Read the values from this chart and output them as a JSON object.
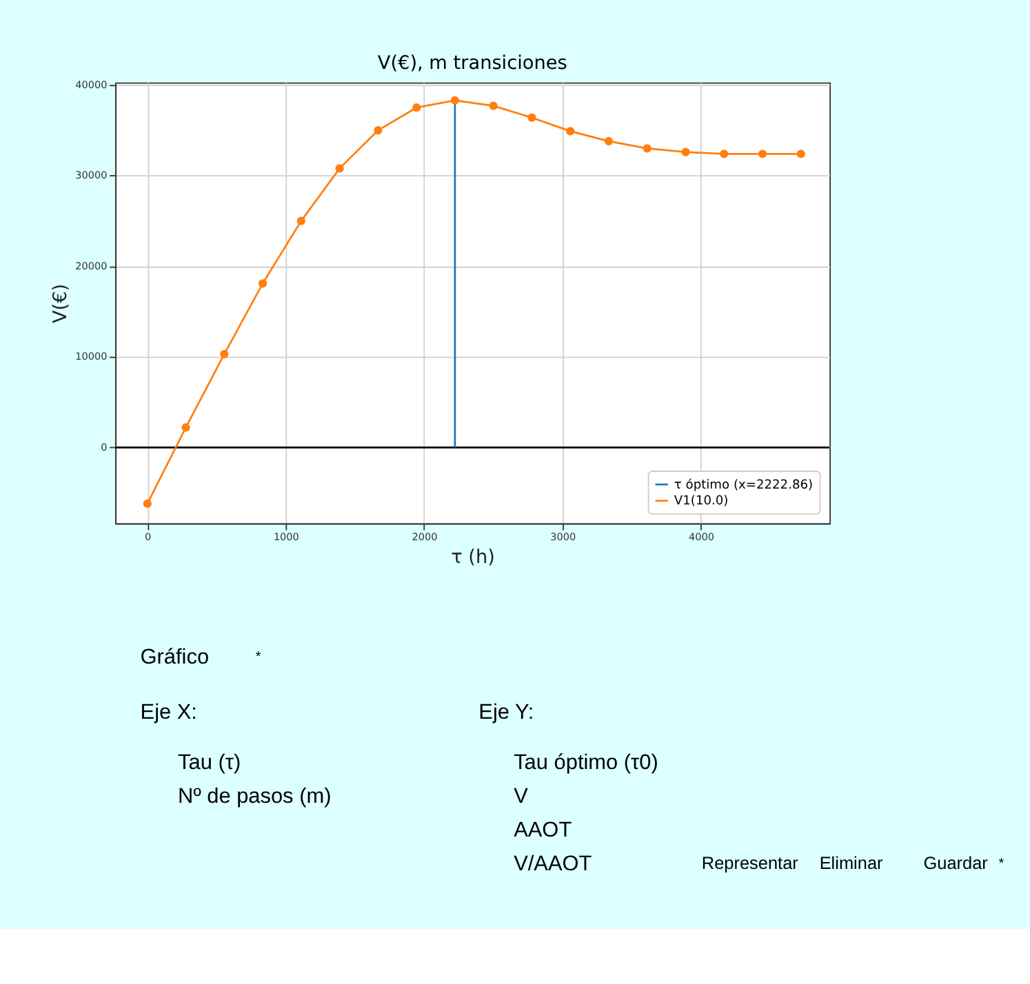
{
  "chart_data": {
    "type": "line",
    "title": "V(€), m transiciones",
    "xlabel": "τ (h)",
    "ylabel": "V(€)",
    "xlim": [
      -232,
      4930
    ],
    "ylim": [
      -8370,
      40280
    ],
    "xticks": [
      0,
      1000,
      2000,
      3000,
      4000
    ],
    "yticks": [
      0,
      10000,
      20000,
      30000,
      40000
    ],
    "grid": true,
    "legend": "bottom right",
    "ref_lines": [
      {
        "axis": "y",
        "value": 0,
        "color": "#000000"
      }
    ],
    "series": [
      {
        "name": "τ óptimo (x=2222.86)",
        "marker": "none",
        "color": "#1f77b4",
        "x": [
          2222.86,
          2222.86
        ],
        "values": [
          0,
          38300
        ]
      },
      {
        "name": "V1(10.0)",
        "marker": "circle",
        "color": "#ff7f0e",
        "x": [
          0,
          277.86,
          555.71,
          833.57,
          1111.43,
          1389.29,
          1667.14,
          1945,
          2222.86,
          2500.71,
          2778.57,
          3056.43,
          3334.29,
          3612.14,
          3890,
          4167.86,
          4445.71,
          4723.57
        ],
        "values": [
          -6200,
          2200,
          10300,
          18100,
          25000,
          30800,
          35000,
          37500,
          38300,
          37700,
          36400,
          34900,
          33800,
          33000,
          32600,
          32400,
          32400,
          32400
        ]
      }
    ],
    "annotations": [
      "Gráfico",
      "*",
      "Eje X:",
      "Tau (τ)",
      "Nº de pasos (m)",
      "Eje Y:",
      "Tau óptimo (τ0)",
      "V",
      "AAOT",
      "V/AAOT",
      "Representar",
      "Eliminar",
      "Guardar",
      "*"
    ]
  }
}
